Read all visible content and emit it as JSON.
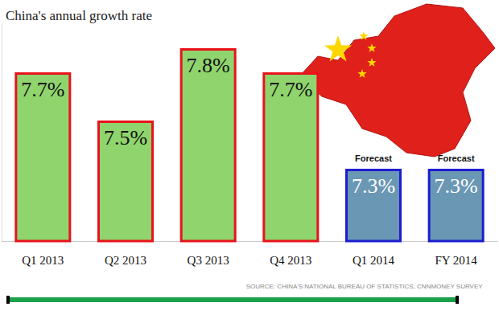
{
  "chart_data": {
    "type": "bar",
    "title": "China's annual growth rate",
    "categories": [
      "Q1 2013",
      "Q2 2013",
      "Q3 2013",
      "Q4 2013",
      "Q1 2014",
      "FY 2014"
    ],
    "values": [
      7.7,
      7.5,
      7.8,
      7.7,
      7.3,
      7.3
    ],
    "value_labels": [
      "7.7%",
      "7.5%",
      "7.8%",
      "7.7%",
      "7.3%",
      "7.3%"
    ],
    "colors": [
      "#8fd46d",
      "#8fd46d",
      "#8fd46d",
      "#8fd46d",
      "#6a97b4",
      "#6a97b4"
    ],
    "ylim": [
      7.0,
      7.9
    ],
    "tick_labels": "x",
    "data_labels": true,
    "annotations": [
      {
        "category": "Q1 2014",
        "text": "Forecast"
      },
      {
        "category": "FY 2014",
        "text": "Forecast"
      }
    ],
    "source": "SOURCE: CHINA'S NATIONAL BUREAU OF STATISTICS; CNNMONEY SURVEY"
  }
}
